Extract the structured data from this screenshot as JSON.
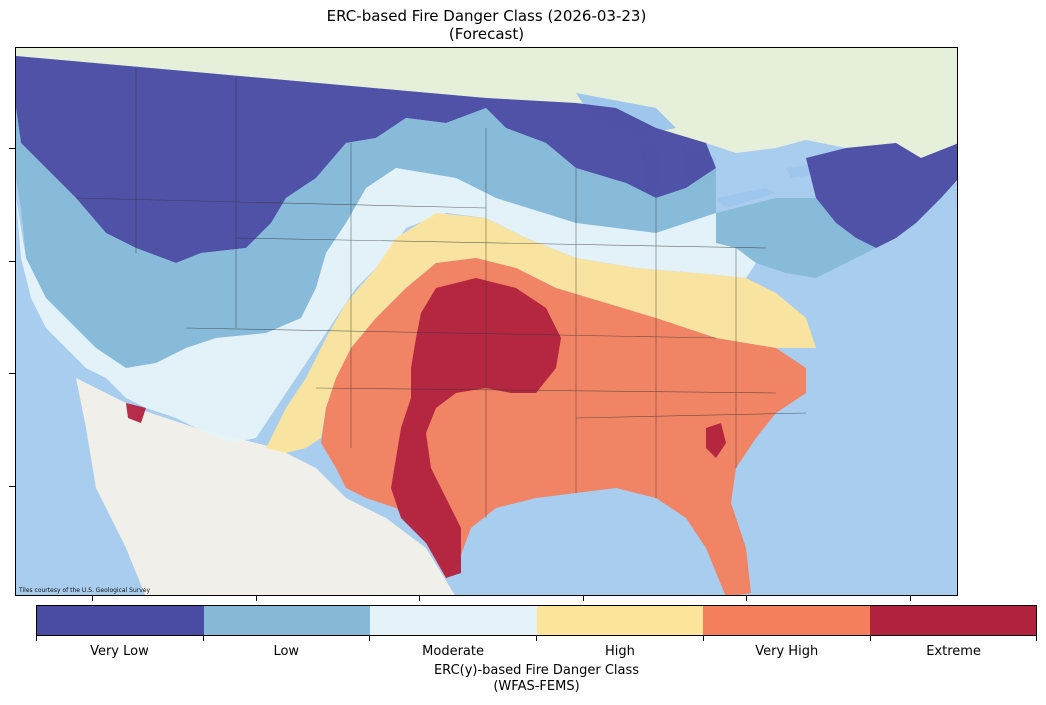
{
  "title": {
    "line1": "ERC-based Fire Danger Class (2026-03-23)",
    "line2": "(Forecast)"
  },
  "map": {
    "attribution": "Tiles courtesy of the U.S. Geological Survey",
    "basemap_colors": {
      "ocean": "#a9cdef",
      "land": "#f0efe9",
      "canada": "#e6efd9",
      "lakes": "#9fc6ec"
    }
  },
  "legend": {
    "title_line1": "ERC(y)-based Fire Danger Class",
    "title_line2": "(WFAS-FEMS)",
    "classes": [
      {
        "label": "Very Low",
        "color": "#4a4ba2"
      },
      {
        "label": "Low",
        "color": "#86b8d8"
      },
      {
        "label": "Moderate",
        "color": "#e5f3f8"
      },
      {
        "label": "High",
        "color": "#fde49b"
      },
      {
        "label": "Very High",
        "color": "#f47f5c"
      },
      {
        "label": "Extreme",
        "color": "#b1223f"
      }
    ]
  }
}
